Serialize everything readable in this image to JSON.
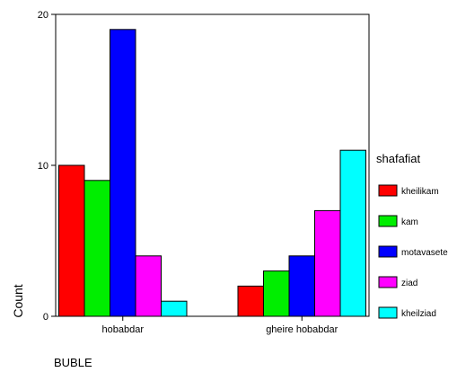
{
  "chart_data": {
    "type": "bar",
    "categories": [
      "hobabdar",
      "gheire hobabdar"
    ],
    "series": [
      {
        "name": "kheilikam",
        "color": "#ff0000",
        "values": [
          10,
          2
        ]
      },
      {
        "name": "kam",
        "color": "#00ee00",
        "values": [
          9,
          3
        ]
      },
      {
        "name": "motavasete",
        "color": "#0000ff",
        "values": [
          19,
          4
        ]
      },
      {
        "name": "ziad",
        "color": "#ff00ff",
        "values": [
          4,
          7
        ]
      },
      {
        "name": "kheilziad",
        "color": "#00ffff",
        "values": [
          1,
          11
        ]
      }
    ],
    "ylim": [
      0,
      20
    ],
    "yticks": [
      0,
      10,
      20
    ],
    "ylabel": "Count",
    "xlabel": "BUBLE",
    "legend_title": "shafafiat",
    "legend_position": "right"
  }
}
